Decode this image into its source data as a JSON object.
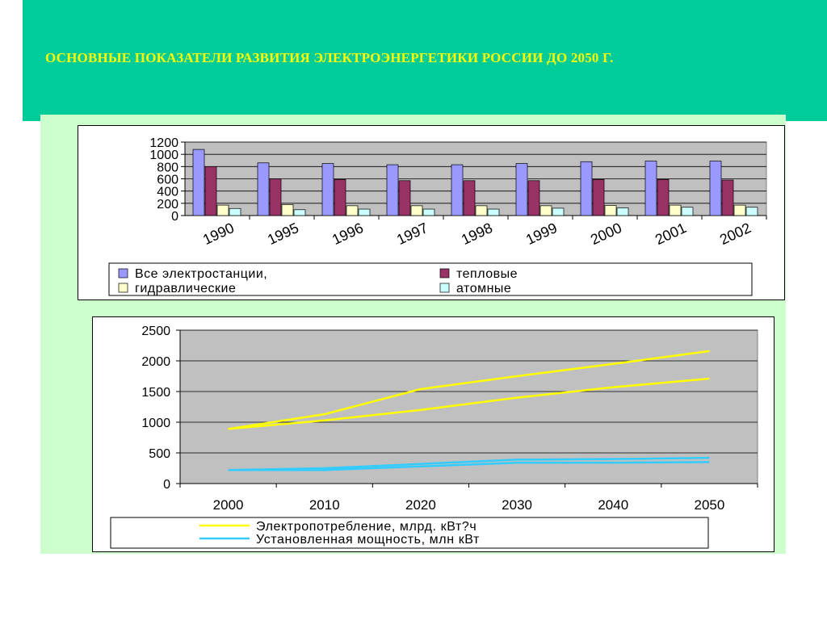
{
  "header": {
    "title": "ОСНОВНЫЕ  ПОКАЗАТЕЛИ РАЗВИТИЯ ЭЛЕКТРОЭНЕРГЕТИКИ РОССИИ ДО 2050 Г."
  },
  "colors": {
    "header_band": "#00cc99",
    "title_text": "#ffff00",
    "panel_background": "#ccffcc",
    "plot_area": "#c0c0c0"
  },
  "chart_data": [
    {
      "type": "bar",
      "categories": [
        "1990",
        "1995",
        "1996",
        "1997",
        "1998",
        "1999",
        "2000",
        "2001",
        "2002"
      ],
      "series": [
        {
          "name": "Все электростанции,",
          "color": "#9999ff",
          "values": [
            1080,
            860,
            850,
            830,
            830,
            850,
            880,
            890,
            890
          ]
        },
        {
          "name": "тепловые",
          "color": "#993366",
          "values": [
            800,
            600,
            590,
            570,
            570,
            570,
            590,
            590,
            580
          ]
        },
        {
          "name": "гидравлические",
          "color": "#ffffcc",
          "values": [
            170,
            180,
            160,
            160,
            160,
            160,
            165,
            170,
            170
          ]
        },
        {
          "name": "атомные",
          "color": "#ccffff",
          "values": [
            115,
            95,
            105,
            105,
            105,
            120,
            125,
            135,
            135
          ]
        }
      ],
      "yticks": [
        "0",
        "200",
        "400",
        "600",
        "800",
        "1000",
        "1200"
      ],
      "ylim": [
        0,
        1200
      ],
      "grid": true,
      "legend_position": "bottom"
    },
    {
      "type": "line",
      "x": [
        "2000",
        "2010",
        "2020",
        "2030",
        "2040",
        "2050"
      ],
      "series": [
        {
          "name": "Электропотребление, млрд. кВт?ч",
          "color": "#ffff00",
          "values": [
            890,
            1130,
            1540,
            1750,
            1950,
            2160
          ]
        },
        {
          "name": "Электропотребление, млрд. кВт?ч",
          "color": "#ffff00",
          "values": [
            890,
            1030,
            1200,
            1400,
            1570,
            1710
          ]
        },
        {
          "name": "Установленная мощность, млн кВт",
          "color": "#33ccff",
          "values": [
            220,
            250,
            320,
            390,
            400,
            420
          ]
        },
        {
          "name": "Установленная мощность, млн кВт",
          "color": "#33ccff",
          "values": [
            220,
            220,
            280,
            340,
            340,
            350
          ]
        }
      ],
      "legend": [
        "Электропотребление, млрд. кВт?ч",
        "Установленная мощность, млн кВт"
      ],
      "yticks": [
        "0",
        "500",
        "1000",
        "1500",
        "2000",
        "2500"
      ],
      "ylim": [
        0,
        2500
      ],
      "grid": true,
      "legend_position": "bottom"
    }
  ]
}
